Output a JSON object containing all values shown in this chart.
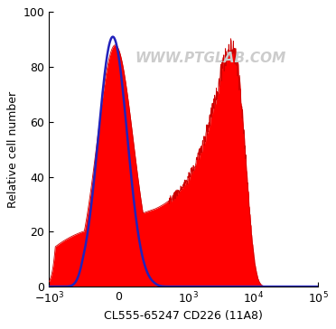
{
  "title": "WWW.PTGLAB.COM",
  "xlabel": "CL555-65247 CD226 (11A8)",
  "ylabel": "Relative cell number",
  "ylim": [
    0,
    100
  ],
  "yticks": [
    0,
    20,
    40,
    60,
    80,
    100
  ],
  "bg_color": "#ffffff",
  "plot_bg_color": "#ffffff",
  "watermark_color": "#cccccc",
  "isotype_color": "#2222bb",
  "sample_fill_color": "#ff0000",
  "linthresh": 300,
  "linscale": 0.5
}
